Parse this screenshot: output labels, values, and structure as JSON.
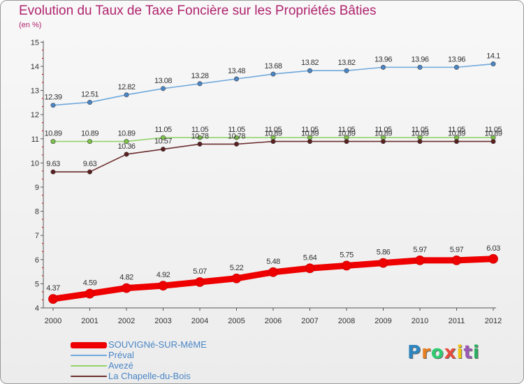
{
  "header": {
    "title": "Evolution du Taux de Taxe Foncière sur les Propriétés Bâties",
    "unit": "(en %)"
  },
  "logo": {
    "text": "Proxiti",
    "letter_colors": [
      "#2e86c1",
      "#e67e22",
      "#2ecc71",
      "#e74c3c",
      "#f1c40f",
      "#9b59b6",
      "#27ae60"
    ]
  },
  "colors": {
    "title": "#b0246e",
    "axis": "#555555",
    "tick_minor": "#cc0000"
  },
  "chart_data": {
    "type": "line",
    "title": "Evolution du Taux de Taxe Foncière sur les Propriétés Bâties",
    "ylabel": "(en %)",
    "xlabel": "",
    "x": [
      "2000",
      "2001",
      "2002",
      "2003",
      "2004",
      "2005",
      "2006",
      "2007",
      "2008",
      "2009",
      "2010",
      "2011",
      "2012"
    ],
    "ylim": [
      4,
      15
    ],
    "yticks": [
      "4",
      "5",
      "6",
      "7",
      "8",
      "9",
      "10",
      "11",
      "12",
      "13",
      "14",
      "15"
    ],
    "grid": false,
    "legend_position": "bottom-left",
    "series": [
      {
        "name": "SOUVIGNé-SUR-MêME",
        "color": "#ee0000",
        "marker": "#ee0000",
        "weight": "heavy",
        "values": [
          4.37,
          4.59,
          4.82,
          4.92,
          5.07,
          5.22,
          5.48,
          5.64,
          5.75,
          5.86,
          5.97,
          5.97,
          6.03
        ],
        "labels": [
          "4.37",
          "4.59",
          "4.82",
          "4.92",
          "5.07",
          "5.22",
          "5.48",
          "5.64",
          "5.75",
          "5.86",
          "5.97",
          "5.97",
          "6.03"
        ]
      },
      {
        "name": "Préval",
        "color": "#6fa8dc",
        "marker": "#4a86c5",
        "weight": "thin",
        "values": [
          12.39,
          12.51,
          12.82,
          13.08,
          13.28,
          13.48,
          13.68,
          13.82,
          13.82,
          13.96,
          13.96,
          13.96,
          14.1
        ],
        "labels": [
          "12.39",
          "12.51",
          "12.82",
          "13.08",
          "13.28",
          "13.48",
          "13.68",
          "13.82",
          "13.82",
          "13.96",
          "13.96",
          "13.96",
          "14.1"
        ]
      },
      {
        "name": "Avezé",
        "color": "#93d36b",
        "marker": "#7cc24a",
        "weight": "thin",
        "values": [
          10.89,
          10.89,
          10.89,
          11.05,
          11.05,
          11.05,
          11.05,
          11.05,
          11.05,
          11.05,
          11.05,
          11.05,
          11.05
        ],
        "labels": [
          "10.89",
          "10.89",
          "10.89",
          "11.05",
          "11.05",
          "11.05",
          "11.05",
          "11.05",
          "11.05",
          "11.05",
          "11.05",
          "11.05",
          "11.05"
        ]
      },
      {
        "name": "La Chapelle-du-Bois",
        "color": "#6b2d2d",
        "marker": "#5a1f1f",
        "weight": "thin",
        "values": [
          9.63,
          9.63,
          10.36,
          10.57,
          10.78,
          10.78,
          10.89,
          10.89,
          10.89,
          10.89,
          10.89,
          10.89,
          10.89
        ],
        "labels": [
          "9.63",
          "9.63",
          "10.36",
          "10.57",
          "10.78",
          "10.78",
          "10.89",
          "10.89",
          "10.89",
          "10.89",
          "10.89",
          "10.89",
          "10.89"
        ]
      }
    ]
  }
}
